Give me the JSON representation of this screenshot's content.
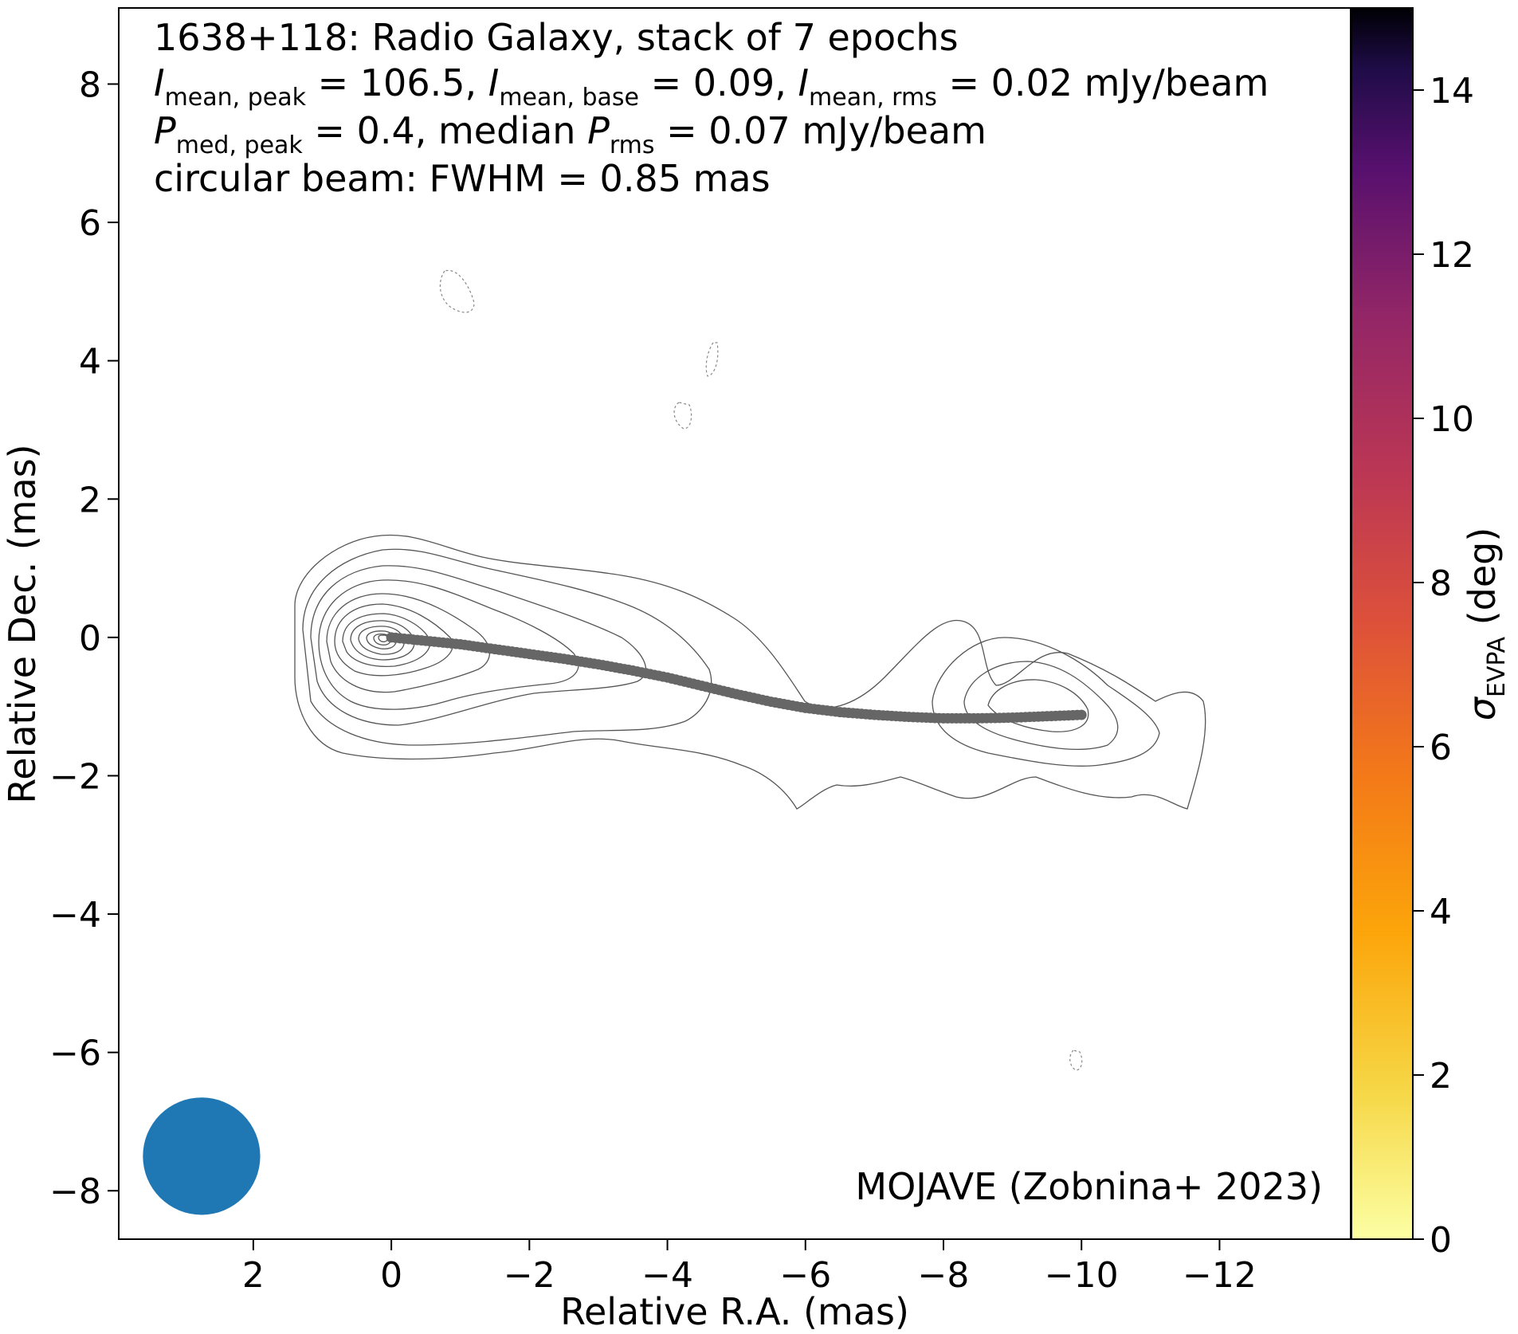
{
  "chart_data": {
    "type": "scatter",
    "title_lines": [
      "1638+118: Radio Galaxy, stack of 7 epochs",
      {
        "I_mean_peak": "106.5",
        "I_mean_base": "0.09",
        "I_mean_rms": "0.02",
        "unit": "mJy/beam"
      },
      {
        "P_med_peak": "0.4",
        "P_rms": "0.07",
        "unit": "mJy/beam"
      },
      "circular beam: FWHM = 0.85 mas"
    ],
    "line1": "1638+118: Radio Galaxy, stack of 7 epochs",
    "line2": {
      "i1": "I",
      "s1": "mean, peak",
      "t1": " = 106.5, ",
      "i2": "I",
      "s2": "mean, base",
      "t2": " = 0.09, ",
      "i3": "I",
      "s3": "mean, rms",
      "t3": " = 0.02 mJy/beam"
    },
    "line3": {
      "i1": "P",
      "s1": "med, peak",
      "t1": " = 0.4, median ",
      "i2": "P",
      "s2": "rms",
      "t2": " = 0.07 mJy/beam"
    },
    "line4": "circular beam: FWHM = 0.85 mas",
    "credit": "MOJAVE (Zobnina+ 2023)",
    "xlabel": "Relative R.A. (mas)",
    "ylabel": "Relative Dec. (mas)",
    "xlim": [
      3.95,
      -13.9
    ],
    "ylim": [
      -8.7,
      9.1
    ],
    "xticks": [
      2,
      0,
      -2,
      -4,
      -6,
      -8,
      -10,
      -12
    ],
    "yticks": [
      8,
      6,
      4,
      2,
      0,
      -2,
      -4,
      -6,
      -8
    ],
    "xtick_labels": [
      "2",
      "0",
      "−2",
      "−4",
      "−6",
      "−8",
      "−10",
      "−12"
    ],
    "ytick_labels": [
      "8",
      "6",
      "4",
      "2",
      "0",
      "−2",
      "−4",
      "−6",
      "−8"
    ],
    "colorbar": {
      "label_symbol": "σ",
      "label_sub": "EVPA",
      "label_unit": " (deg)",
      "range": [
        0,
        15
      ],
      "ticks": [
        0,
        2,
        4,
        6,
        8,
        10,
        12,
        14
      ],
      "tick_labels": [
        "0",
        "2",
        "4",
        "6",
        "8",
        "10",
        "12",
        "14"
      ],
      "colormap": "inferno_r"
    },
    "beam": {
      "x": 2.75,
      "y": -7.5,
      "fwhm": 0.85,
      "color": "#1f77b4"
    },
    "ridgeline_color": "#666666",
    "ridgeline": [
      [
        0.0,
        0.0
      ],
      [
        -0.5,
        -0.05
      ],
      [
        -1.0,
        -0.1
      ],
      [
        -1.5,
        -0.17
      ],
      [
        -2.0,
        -0.24
      ],
      [
        -2.5,
        -0.31
      ],
      [
        -3.0,
        -0.39
      ],
      [
        -3.5,
        -0.48
      ],
      [
        -4.0,
        -0.58
      ],
      [
        -4.5,
        -0.7
      ],
      [
        -5.0,
        -0.82
      ],
      [
        -5.5,
        -0.93
      ],
      [
        -6.0,
        -1.02
      ],
      [
        -6.5,
        -1.08
      ],
      [
        -7.0,
        -1.12
      ],
      [
        -7.5,
        -1.15
      ],
      [
        -8.0,
        -1.17
      ],
      [
        -8.5,
        -1.17
      ],
      [
        -9.0,
        -1.16
      ],
      [
        -9.5,
        -1.14
      ],
      [
        -10.0,
        -1.12
      ]
    ]
  }
}
